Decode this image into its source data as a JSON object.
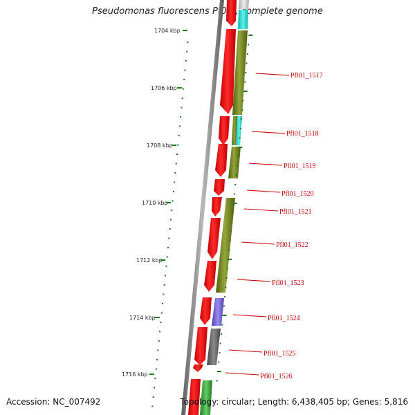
{
  "title": "Pseudomonas fluorescens Pf0-1, complete genome",
  "footer": {
    "accession": "Accession: NC_007492",
    "summary": "Topology: circular; Length: 6,438,405 bp; Genes: 5,816"
  },
  "colors": {
    "backbone": "#8a8a8a",
    "forward_cds": "#ff0000",
    "ruler_ticks": "#1a7a1a",
    "label_text": "#cc0000",
    "olive_feature": "#7a8c22",
    "cyan_feature": "#33e0d0",
    "purple_feature": "#7766dd",
    "gray_feature": "#666666",
    "green_feature": "#44aa44"
  },
  "ruler": {
    "unit": "kbp",
    "ticks": [
      {
        "position_kbp": 1704,
        "label": "1704 kbp"
      },
      {
        "position_kbp": 1706,
        "label": "1706 kbp"
      },
      {
        "position_kbp": 1708,
        "label": "1708 kbp"
      },
      {
        "position_kbp": 1710,
        "label": "1710 kbp"
      },
      {
        "position_kbp": 1712,
        "label": "1712 kbp"
      },
      {
        "position_kbp": 1714,
        "label": "1714 kbp"
      },
      {
        "position_kbp": 1716,
        "label": "1716 kbp"
      }
    ]
  },
  "gene_labels": [
    "Pfl01_1517",
    "Pfl01_1518",
    "Pfl01_1519",
    "Pfl01_1520",
    "Pfl01_1521",
    "Pfl01_1522",
    "Pfl01_1523",
    "Pfl01_1524",
    "Pfl01_1525",
    "Pfl01_1526"
  ]
}
